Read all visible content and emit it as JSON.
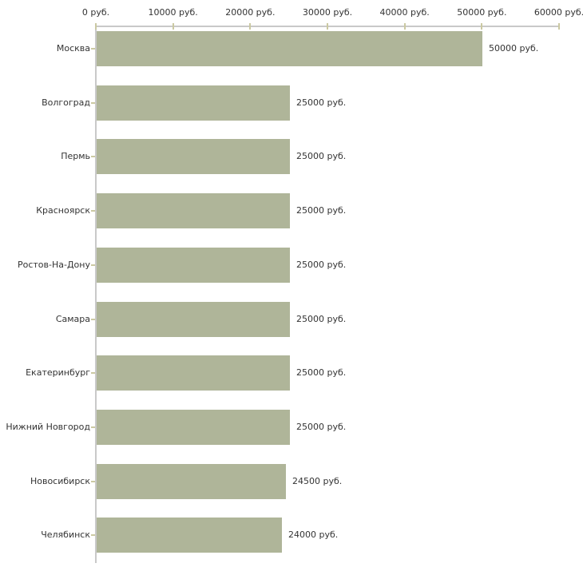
{
  "chart_data": {
    "type": "bar",
    "orientation": "horizontal",
    "title": "",
    "xlabel": "",
    "ylabel": "",
    "grid": false,
    "legend": false,
    "categories": [
      "Москва",
      "Волгоград",
      "Пермь",
      "Красноярск",
      "Ростов-На-Дону",
      "Самара",
      "Екатеринбург",
      "Нижний Новгород",
      "Новосибирск",
      "Челябинск"
    ],
    "values": [
      50000,
      25000,
      25000,
      25000,
      25000,
      25000,
      25000,
      25000,
      24500,
      24000
    ],
    "value_labels": [
      "50000 руб.",
      "25000 руб.",
      "25000 руб.",
      "25000 руб.",
      "25000 руб.",
      "25000 руб.",
      "25000 руб.",
      "25000 руб.",
      "24500 руб.",
      "24000 руб."
    ],
    "x_axis": {
      "position": "top",
      "xlim": [
        0,
        60000
      ],
      "tick_values": [
        0,
        10000,
        20000,
        30000,
        40000,
        50000,
        60000
      ],
      "tick_labels": [
        "0 руб.",
        "10000 руб.",
        "20000 руб.",
        "30000 руб.",
        "40000 руб.",
        "50000 руб.",
        "60000 руб."
      ]
    },
    "colors": {
      "bar": "#afb599",
      "axis_line": "#c9c9c9",
      "tick": "#cbc9a2",
      "text": "#333333",
      "background": "#ffffff"
    }
  }
}
